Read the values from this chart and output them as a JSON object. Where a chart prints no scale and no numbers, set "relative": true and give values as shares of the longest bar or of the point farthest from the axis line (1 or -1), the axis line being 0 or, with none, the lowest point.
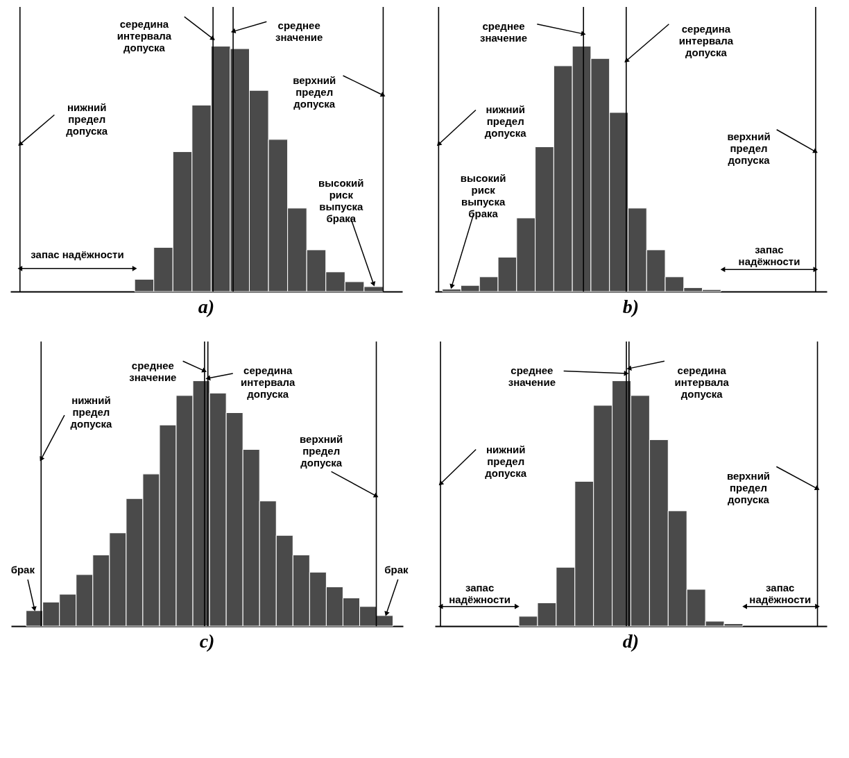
{
  "chart_data": [
    {
      "type": "bar",
      "title": "a)",
      "relative": true,
      "color": "#4a4a4a",
      "categories": [
        null,
        null,
        null,
        null,
        null,
        null,
        null,
        null,
        null,
        null,
        null,
        null,
        null
      ],
      "values": [
        0.05,
        0.18,
        0.57,
        0.76,
        1.0,
        0.99,
        0.82,
        0.62,
        0.34,
        0.17,
        0.08,
        0.04,
        0.02
      ],
      "annotations": [
        "нижний предел допуска",
        "середина интервала допуска",
        "среднее значение",
        "верхний предел допуска",
        "запас надёжности",
        "высокий риск выпуска брака"
      ]
    },
    {
      "type": "bar",
      "title": "b)",
      "relative": true,
      "color": "#4a4a4a",
      "categories": [
        null,
        null,
        null,
        null,
        null,
        null,
        null,
        null,
        null,
        null,
        null,
        null,
        null,
        null,
        null
      ],
      "values": [
        0.01,
        0.025,
        0.06,
        0.14,
        0.3,
        0.59,
        0.92,
        1.0,
        0.95,
        0.73,
        0.34,
        0.17,
        0.06,
        0.016,
        0.008
      ],
      "annotations": [
        "нижний предел допуска",
        "среднее значение",
        "середина интервала допуска",
        "верхний предел допуска",
        "запас надёжности",
        "высокий риск выпуска брака"
      ]
    },
    {
      "type": "bar",
      "title": "c)",
      "relative": true,
      "color": "#4a4a4a",
      "categories": [
        null,
        null,
        null,
        null,
        null,
        null,
        null,
        null,
        null,
        null,
        null,
        null,
        null,
        null,
        null,
        null,
        null,
        null,
        null,
        null,
        null,
        null
      ],
      "values": [
        0.063,
        0.098,
        0.13,
        0.21,
        0.29,
        0.38,
        0.52,
        0.62,
        0.82,
        0.94,
        1.0,
        0.95,
        0.87,
        0.72,
        0.51,
        0.37,
        0.29,
        0.22,
        0.16,
        0.115,
        0.08,
        0.043
      ],
      "annotations": [
        "нижний предел допуска",
        "среднее значение",
        "середина интервала допуска",
        "верхний предел допуска",
        "брак",
        "брак"
      ]
    },
    {
      "type": "bar",
      "title": "d)",
      "relative": true,
      "color": "#4a4a4a",
      "categories": [
        null,
        null,
        null,
        null,
        null,
        null,
        null,
        null,
        null,
        null,
        null,
        null
      ],
      "values": [
        0.04,
        0.095,
        0.24,
        0.59,
        0.9,
        1.0,
        0.94,
        0.76,
        0.47,
        0.15,
        0.02,
        0.01
      ],
      "annotations": [
        "нижний предел допуска",
        "среднее значение",
        "середина интервала допуска",
        "верхний предел допуска",
        "запас надёжности",
        "запас надёжности"
      ]
    }
  ]
}
